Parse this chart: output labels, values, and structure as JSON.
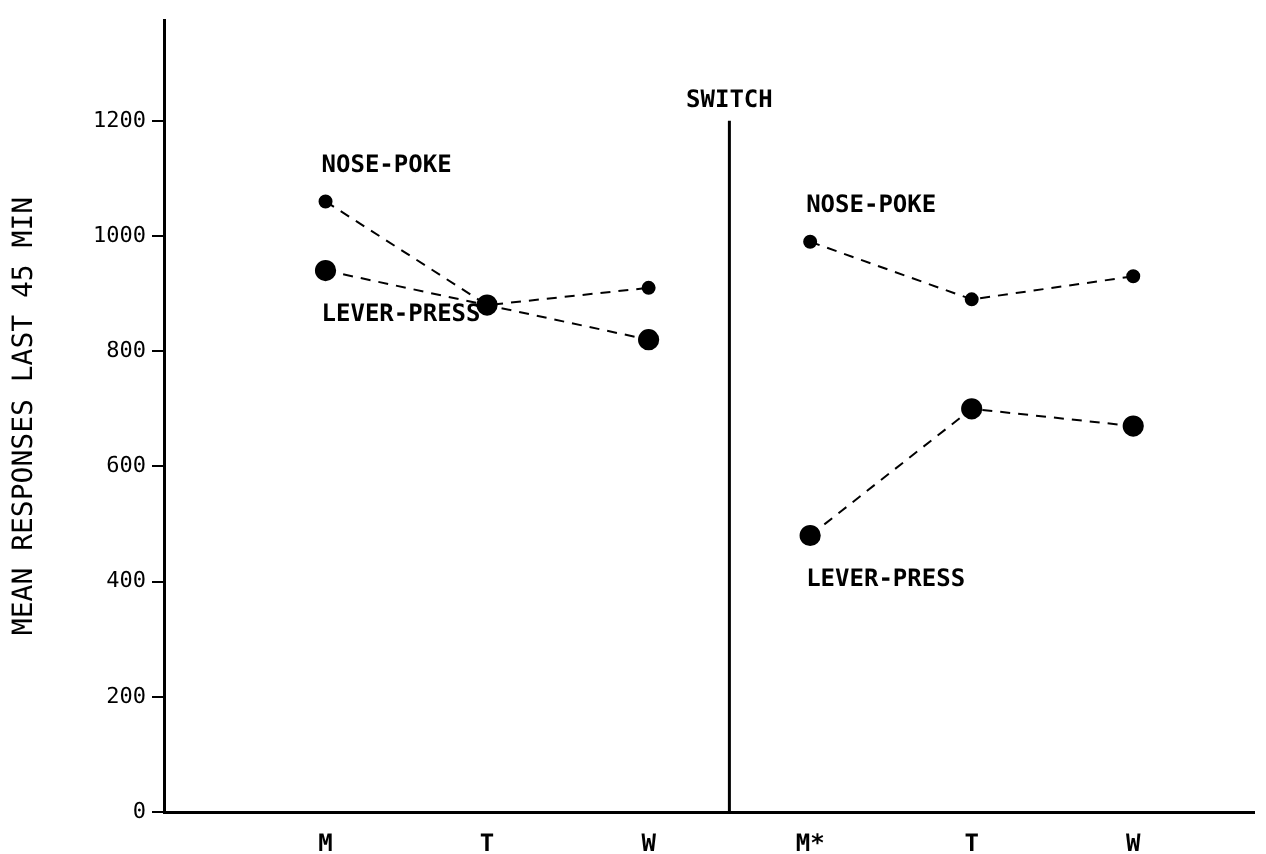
{
  "chart_data": {
    "type": "line",
    "ylabel": "MEAN RESPONSES LAST 45 MIN",
    "categories": [
      "M",
      "T",
      "W",
      "M*",
      "T",
      "W"
    ],
    "series": [
      {
        "name": "NOSE-POKE",
        "color": "#000000",
        "values": [
          1060,
          880,
          910,
          990,
          890,
          930
        ]
      },
      {
        "name": "LEVER-PRESS",
        "color": "#000000",
        "values": [
          940,
          880,
          820,
          480,
          700,
          670
        ]
      }
    ],
    "ylim": [
      0,
      1375
    ],
    "yticks": [
      0,
      200,
      400,
      600,
      800,
      1000,
      1200
    ],
    "annotations": [
      "SWITCH"
    ],
    "grid": false,
    "legend": false,
    "marker": "circle",
    "line_style": "dashed"
  }
}
